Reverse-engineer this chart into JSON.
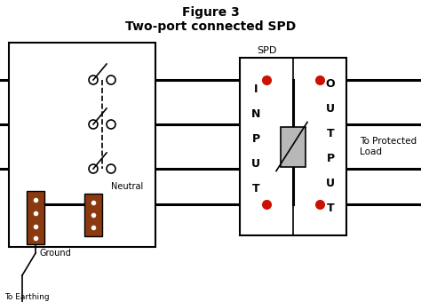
{
  "title_line1": "Figure 3",
  "title_line2": "Two-port connected SPD",
  "background_color": "#ffffff",
  "line_color": "#000000",
  "wire_color": "#000000",
  "terminal_color": "#cc1100",
  "connector_color": "#8B3A0F",
  "spd_label": "SPD",
  "neutral_label": "Neutral",
  "ground_label": "Ground",
  "protected_label": "To Protected\nLoad",
  "earthing_label": "To Earthing\nElectrode",
  "fig_width": 4.74,
  "fig_height": 3.4,
  "dpi": 100,
  "bg_gray": "#f0f0f0"
}
